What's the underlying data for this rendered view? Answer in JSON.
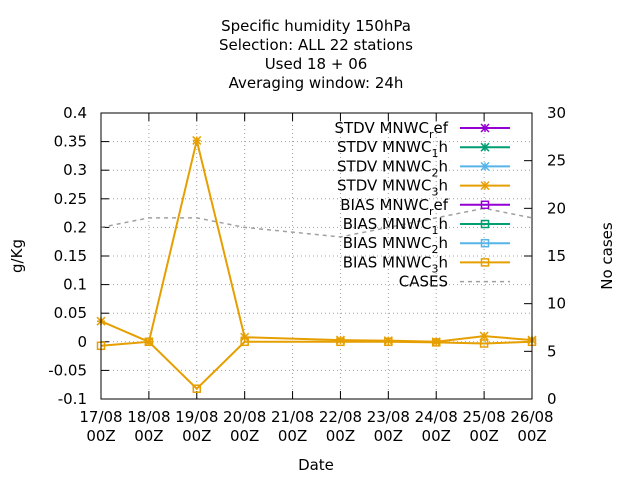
{
  "chart_data": {
    "type": "line",
    "title_lines": [
      "Specific humidity 150hPa",
      "Selection: ALL      22 stations",
      "Used  18 + 06",
      "Averaging window: 24h"
    ],
    "xlabel": "Date",
    "ylabel": "g/Kg",
    "y2label": "No cases",
    "x_categories": [
      "17/08 00Z",
      "18/08 00Z",
      "19/08 00Z",
      "20/08 00Z",
      "21/08 00Z",
      "22/08 00Z",
      "23/08 00Z",
      "24/08 00Z",
      "25/08 00Z",
      "26/08 00Z"
    ],
    "ylim": [
      -0.1,
      0.4
    ],
    "yticks": [
      "-0.1",
      "-0.05",
      "0",
      "0.05",
      "0.1",
      "0.15",
      "0.2",
      "0.25",
      "0.3",
      "0.35",
      "0.4"
    ],
    "y2lim": [
      0,
      30
    ],
    "y2ticks": [
      "0",
      "5",
      "10",
      "15",
      "20",
      "25",
      "30"
    ],
    "grid": true,
    "legend_position": "top-right",
    "series": [
      {
        "name": "STDV MNWC_ref",
        "base": "STDV MNWC",
        "sub": "r",
        "rest": "ef",
        "axis": "y1",
        "color": "#9400d3",
        "marker": "star",
        "dashed": false,
        "values": [
          null,
          null,
          null,
          null,
          null,
          null,
          null,
          null,
          null,
          null
        ]
      },
      {
        "name": "STDV MNWC_1h",
        "base": "STDV MNWC",
        "sub": "1",
        "rest": "h",
        "axis": "y1",
        "color": "#009e73",
        "marker": "star",
        "dashed": false,
        "values": [
          null,
          null,
          null,
          null,
          null,
          null,
          null,
          null,
          null,
          null
        ]
      },
      {
        "name": "STDV MNWC_2h",
        "base": "STDV MNWC",
        "sub": "2",
        "rest": "h",
        "axis": "y1",
        "color": "#56b4e9",
        "marker": "star",
        "dashed": false,
        "values": [
          null,
          null,
          null,
          null,
          null,
          null,
          null,
          null,
          null,
          null
        ]
      },
      {
        "name": "STDV MNWC_3h",
        "base": "STDV MNWC",
        "sub": "3",
        "rest": "h",
        "axis": "y1",
        "color": "#e69f00",
        "marker": "star",
        "dashed": false,
        "values": [
          0.036,
          0.0,
          0.352,
          0.008,
          null,
          0.003,
          0.002,
          0.0,
          0.01,
          0.003
        ]
      },
      {
        "name": "BIAS MNWC_ref",
        "base": "BIAS MNWC",
        "sub": "r",
        "rest": "ef",
        "axis": "y1",
        "color": "#9400d3",
        "marker": "square",
        "dashed": false,
        "values": [
          null,
          null,
          null,
          null,
          null,
          null,
          null,
          null,
          null,
          null
        ]
      },
      {
        "name": "BIAS MNWC_1h",
        "base": "BIAS MNWC",
        "sub": "1",
        "rest": "h",
        "axis": "y1",
        "color": "#009e73",
        "marker": "square",
        "dashed": false,
        "values": [
          null,
          null,
          null,
          null,
          null,
          null,
          null,
          null,
          null,
          null
        ]
      },
      {
        "name": "BIAS MNWC_2h",
        "base": "BIAS MNWC",
        "sub": "2",
        "rest": "h",
        "axis": "y1",
        "color": "#56b4e9",
        "marker": "square",
        "dashed": false,
        "values": [
          null,
          null,
          null,
          null,
          null,
          null,
          null,
          null,
          null,
          null
        ]
      },
      {
        "name": "BIAS MNWC_3h",
        "base": "BIAS MNWC",
        "sub": "3",
        "rest": "h",
        "axis": "y1",
        "color": "#e69f00",
        "marker": "square",
        "dashed": false,
        "values": [
          -0.007,
          0.0,
          -0.082,
          0.0,
          null,
          0.0,
          0.0,
          -0.001,
          -0.003,
          0.0
        ]
      },
      {
        "name": "CASES",
        "base": "CASES",
        "sub": "",
        "rest": "",
        "axis": "y2",
        "color": "#a0a0a0",
        "marker": "none",
        "dashed": true,
        "values": [
          18,
          19,
          19,
          18,
          17.5,
          17,
          18,
          19,
          20,
          19
        ]
      }
    ]
  }
}
